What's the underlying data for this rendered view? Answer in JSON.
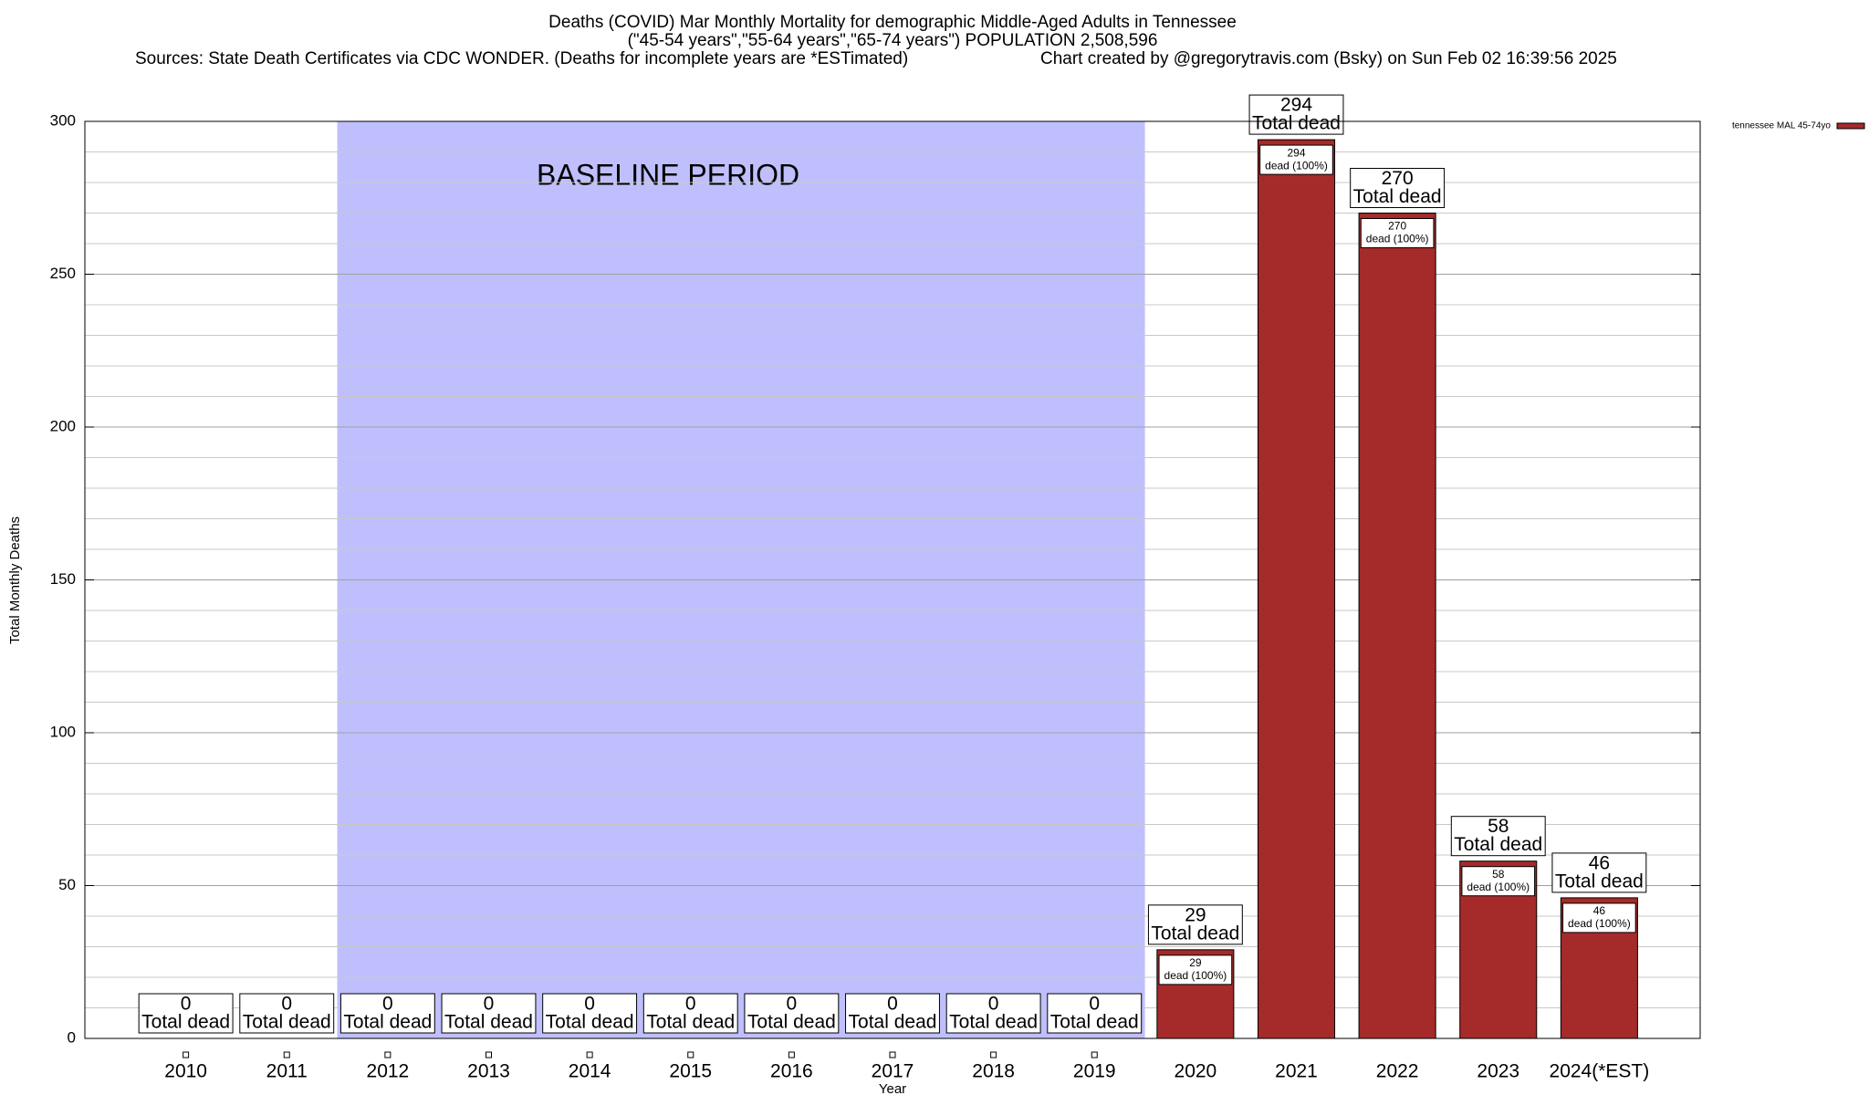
{
  "chart_data": {
    "type": "bar",
    "title": "Deaths (COVID) Mar Monthly Mortality for demographic Middle-Aged Adults in Tennessee",
    "subtitle": "(\"45-54 years\",\"55-64 years\",\"65-74 years\") POPULATION 2,508,596",
    "sources": "Sources: State Death Certificates via CDC WONDER. (Deaths for incomplete years are *ESTimated)",
    "credit": "Chart created by @gregorytravis.com (Bsky) on Sun Feb 02 16:39:56 2025",
    "x_label": "Year",
    "y_label": "Total Monthly Deaths",
    "categories": [
      "2010",
      "2011",
      "2012",
      "2013",
      "2014",
      "2015",
      "2016",
      "2017",
      "2018",
      "2019",
      "2020",
      "2021",
      "2022",
      "2023",
      "2024(*EST)"
    ],
    "series": [
      {
        "name": "tennessee MAL 45-74yo",
        "color": "#a52a2a",
        "values": [
          0,
          0,
          0,
          0,
          0,
          0,
          0,
          0,
          0,
          0,
          29,
          294,
          270,
          58,
          46
        ]
      }
    ],
    "total_label": "Total dead",
    "inner_label": "dead (100%)",
    "baseline": {
      "label": "BASELINE PERIOD",
      "from": "2012",
      "to": "2019",
      "color": "#bfbffe"
    },
    "ylim": [
      0,
      300
    ],
    "yticks": [
      0,
      50,
      100,
      150,
      200,
      250,
      300
    ],
    "minor_grid_step": 10,
    "grid": true,
    "legend": "top-right"
  }
}
